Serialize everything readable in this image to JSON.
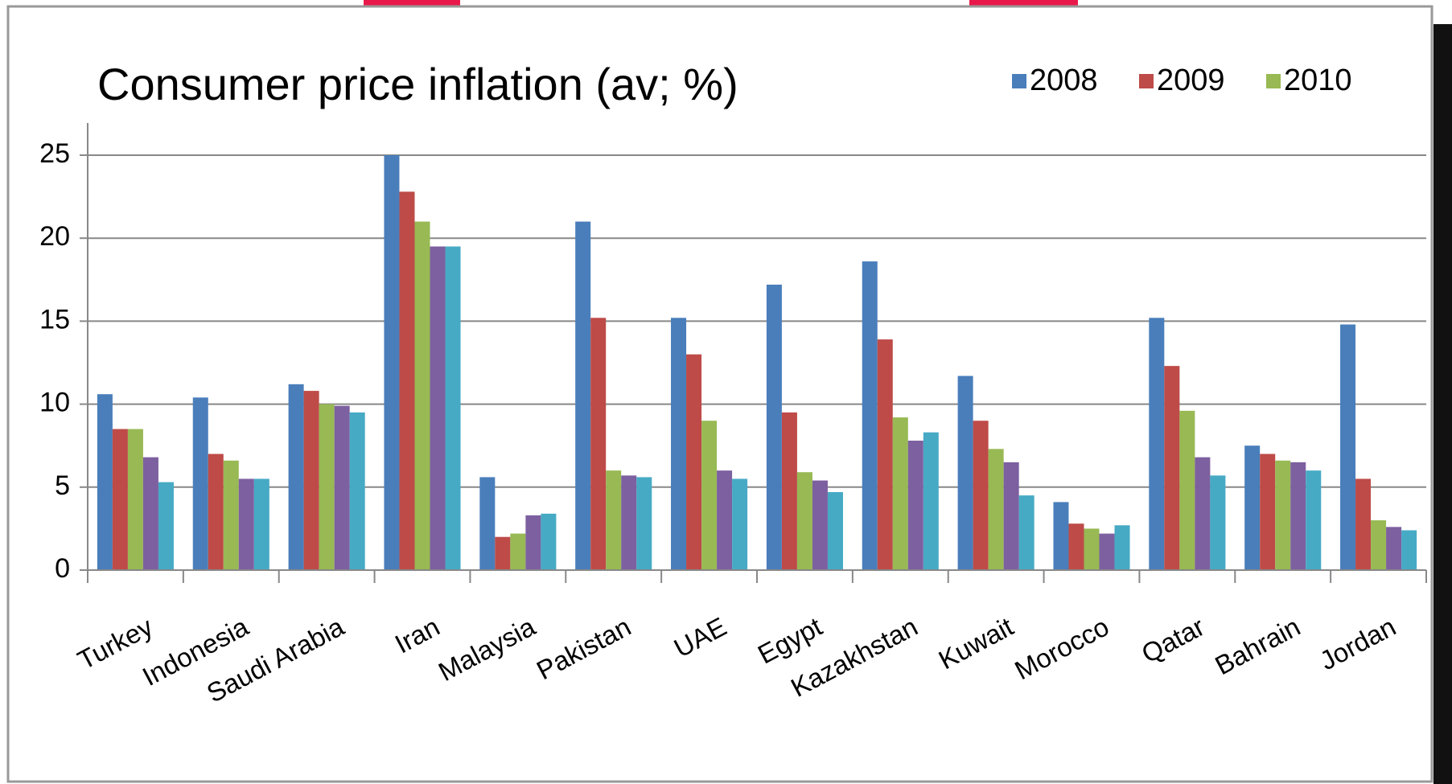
{
  "chart_data": {
    "type": "bar",
    "title": "Consumer price inflation (av; %)",
    "categories": [
      "Turkey",
      "Indonesia",
      "Saudi Arabia",
      "Iran",
      "Malaysia",
      "Pakistan",
      "UAE",
      "Egypt",
      "Kazakhstan",
      "Kuwait",
      "Morocco",
      "Qatar",
      "Bahrain",
      "Jordan"
    ],
    "series": [
      {
        "name": "2008",
        "color": "#4a7ebb",
        "values": [
          10.6,
          10.4,
          11.2,
          25,
          5.6,
          21,
          15.2,
          17.2,
          18.6,
          11.7,
          4.1,
          15.2,
          7.5,
          14.8
        ]
      },
      {
        "name": "2009",
        "color": "#be4b48",
        "values": [
          8.5,
          7.0,
          10.8,
          22.8,
          2.0,
          15.2,
          13.0,
          9.5,
          13.9,
          9.0,
          2.8,
          12.3,
          7.0,
          5.5
        ]
      },
      {
        "name": "2010",
        "color": "#98b954",
        "values": [
          8.5,
          6.6,
          10.0,
          21.0,
          2.2,
          6.0,
          9.0,
          5.9,
          9.2,
          7.3,
          2.5,
          9.6,
          6.6,
          3.0
        ]
      },
      {
        "color": "#7d60a0",
        "values": [
          6.8,
          5.5,
          9.9,
          19.5,
          3.3,
          5.7,
          6.0,
          5.4,
          7.8,
          6.5,
          2.2,
          6.8,
          6.5,
          2.6
        ]
      },
      {
        "color": "#46aac5",
        "values": [
          5.3,
          5.5,
          9.5,
          19.5,
          3.4,
          5.6,
          5.5,
          4.7,
          8.3,
          4.5,
          2.7,
          5.7,
          6.0,
          2.4
        ]
      }
    ],
    "ylim": [
      0,
      25
    ],
    "yticks": [
      0,
      5,
      10,
      15,
      20,
      25
    ],
    "grid": true,
    "legend": "top-right"
  }
}
